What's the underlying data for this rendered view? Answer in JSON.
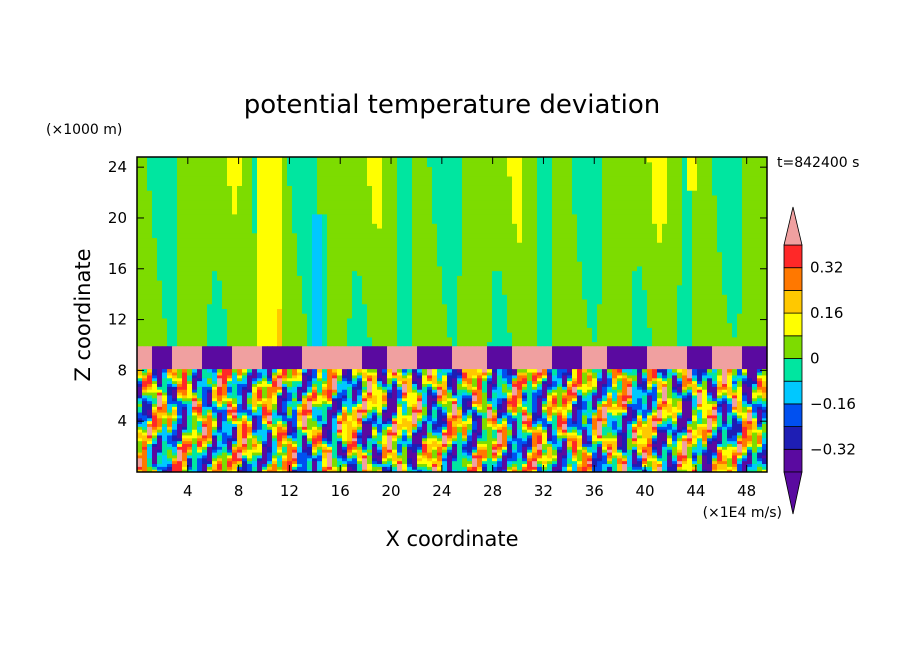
{
  "chart_data": {
    "type": "heatmap",
    "title": "potential temperature deviation",
    "xlabel": "X coordinate",
    "ylabel": "Z coordinate",
    "x_unit_label": "(×1E4 m/s)",
    "y_unit_label": "(×1000 m)",
    "time_label": "t=842400 s",
    "x_ticks": [
      4,
      8,
      12,
      16,
      20,
      24,
      28,
      32,
      36,
      40,
      44,
      48
    ],
    "y_ticks": [
      4,
      8,
      12,
      16,
      20,
      24
    ],
    "xlim": [
      0,
      49.6
    ],
    "ylim": [
      0,
      24.8
    ],
    "colorbar": {
      "levels": [
        -0.4,
        -0.32,
        -0.24,
        -0.16,
        -0.08,
        0,
        0.08,
        0.16,
        0.24,
        0.32,
        0.4
      ],
      "tick_labels": [
        "0.32",
        "0.16",
        "0",
        "−0.16",
        "−0.32"
      ],
      "tick_values": [
        0.32,
        0.16,
        0,
        -0.16,
        -0.32
      ],
      "colors": [
        "#5a0aa0",
        "#1e1eb4",
        "#0050f0",
        "#00c8ff",
        "#00e6a0",
        "#7ddc00",
        "#ffff00",
        "#ffc800",
        "#ff7800",
        "#ff2828"
      ],
      "over_color": "#f0a0a0",
      "under_color": "#5a0aa0"
    },
    "layers": [
      {
        "name": "upper",
        "z_range": [
          9.9,
          24.8
        ],
        "dominant": "0 to 0.08"
      },
      {
        "name": "band",
        "z_range": [
          8.1,
          9.9
        ],
        "dominant": "over (>0.4) with under (<-0.4) patches"
      },
      {
        "name": "lower",
        "z_range": [
          0,
          8.1
        ],
        "dominant": "turbulent, full range"
      }
    ]
  }
}
